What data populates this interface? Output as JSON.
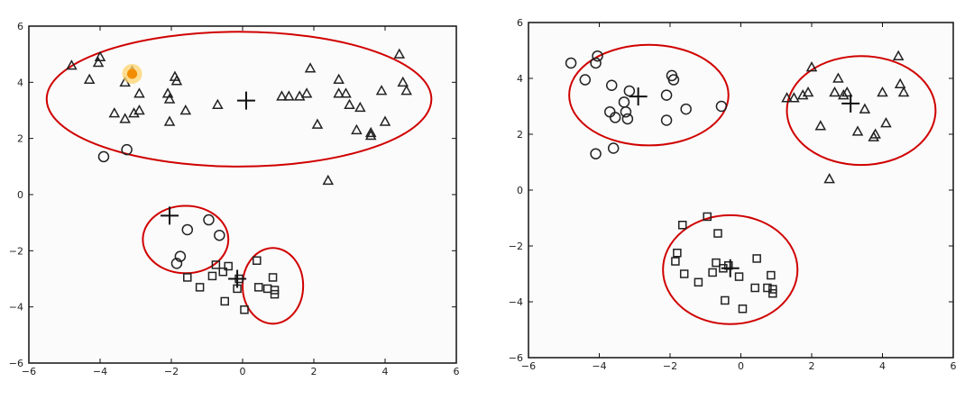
{
  "chart_data": [
    {
      "type": "scatter",
      "title": "",
      "xlabel": "",
      "ylabel": "",
      "xlim": [
        -6,
        6
      ],
      "ylim": [
        -6,
        6
      ],
      "xticks": [
        "−6",
        "−4",
        "−2",
        "0",
        "2",
        "4",
        "6"
      ],
      "yticks": [
        "6",
        "4",
        "2",
        "0",
        "−2",
        "−4",
        "−6"
      ],
      "grid": false,
      "series": [
        {
          "marker": "triangle",
          "points": [
            [
              -4.8,
              4.6
            ],
            [
              -4.3,
              4.1
            ],
            [
              -4.05,
              4.7
            ],
            [
              -4.0,
              4.9
            ],
            [
              -3.3,
              4.0
            ],
            [
              -3.1,
              4.4
            ],
            [
              -2.9,
              3.6
            ],
            [
              -3.6,
              2.9
            ],
            [
              -3.3,
              2.7
            ],
            [
              -3.05,
              2.9
            ],
            [
              -2.9,
              3.0
            ],
            [
              -2.1,
              3.6
            ],
            [
              -2.05,
              3.4
            ],
            [
              -1.9,
              4.2
            ],
            [
              -1.85,
              4.05
            ],
            [
              -2.05,
              2.6
            ],
            [
              -1.6,
              3.0
            ],
            [
              -0.7,
              3.2
            ],
            [
              1.1,
              3.5
            ],
            [
              1.3,
              3.5
            ],
            [
              1.6,
              3.5
            ],
            [
              1.8,
              3.6
            ],
            [
              1.9,
              4.5
            ],
            [
              2.1,
              2.5
            ],
            [
              2.7,
              4.1
            ],
            [
              2.7,
              3.6
            ],
            [
              2.9,
              3.6
            ],
            [
              3.0,
              3.2
            ],
            [
              3.2,
              2.3
            ],
            [
              3.3,
              3.1
            ],
            [
              3.6,
              2.1
            ],
            [
              3.6,
              2.2
            ],
            [
              4.0,
              2.6
            ],
            [
              4.4,
              5.0
            ],
            [
              4.5,
              4.0
            ],
            [
              4.6,
              3.7
            ],
            [
              3.9,
              3.7
            ],
            [
              2.4,
              0.5
            ]
          ]
        },
        {
          "marker": "circle",
          "points": [
            [
              -3.9,
              1.35
            ],
            [
              -3.25,
              1.6
            ],
            [
              -1.55,
              -1.25
            ],
            [
              -0.95,
              -0.9
            ],
            [
              -0.65,
              -1.45
            ],
            [
              -1.75,
              -2.2
            ],
            [
              -1.85,
              -2.45
            ]
          ]
        },
        {
          "marker": "square",
          "points": [
            [
              -1.55,
              -2.95
            ],
            [
              -1.2,
              -3.3
            ],
            [
              -0.85,
              -2.9
            ],
            [
              -0.75,
              -2.5
            ],
            [
              -0.55,
              -2.75
            ],
            [
              -0.5,
              -3.8
            ],
            [
              -0.4,
              -2.55
            ],
            [
              -0.1,
              -3.0
            ],
            [
              0.05,
              -4.1
            ],
            [
              0.4,
              -2.35
            ],
            [
              0.45,
              -3.3
            ],
            [
              0.7,
              -3.35
            ],
            [
              0.85,
              -2.95
            ],
            [
              0.9,
              -3.4
            ],
            [
              0.9,
              -3.55
            ],
            [
              -0.15,
              -3.35
            ]
          ]
        },
        {
          "marker": "centroid",
          "points": [
            [
              0.1,
              3.35
            ],
            [
              -2.05,
              -0.75
            ],
            [
              -0.15,
              -3.0
            ]
          ]
        }
      ],
      "annotations": [
        {
          "shape": "ellipse",
          "cx": -0.1,
          "cy": 3.4,
          "rx": 5.4,
          "ry": 2.4
        },
        {
          "shape": "ellipse",
          "cx": -1.6,
          "cy": -1.6,
          "rx": 1.2,
          "ry": 1.2
        },
        {
          "shape": "ellipse",
          "cx": 0.85,
          "cy": -3.25,
          "rx": 0.85,
          "ry": 1.35
        },
        {
          "shape": "highlight-dot",
          "x": -3.1,
          "y": 4.3,
          "color": "#f28c00",
          "glow": "#ffd36b"
        }
      ]
    },
    {
      "type": "scatter",
      "title": "",
      "xlabel": "",
      "ylabel": "",
      "xlim": [
        -6,
        6
      ],
      "ylim": [
        -6,
        6
      ],
      "xticks": [
        "−6",
        "−4",
        "−2",
        "0",
        "2",
        "4",
        "6"
      ],
      "yticks": [
        "6",
        "4",
        "2",
        "0",
        "−2",
        "−4",
        "−6"
      ],
      "grid": false,
      "series": [
        {
          "marker": "triangle",
          "points": [
            [
              1.3,
              3.3
            ],
            [
              1.5,
              3.3
            ],
            [
              1.75,
              3.4
            ],
            [
              1.9,
              3.5
            ],
            [
              2.0,
              4.4
            ],
            [
              2.25,
              2.3
            ],
            [
              2.65,
              3.5
            ],
            [
              2.75,
              4.0
            ],
            [
              2.9,
              3.4
            ],
            [
              3.0,
              3.5
            ],
            [
              3.3,
              2.1
            ],
            [
              3.5,
              2.9
            ],
            [
              3.75,
              1.9
            ],
            [
              3.8,
              2.0
            ],
            [
              4.0,
              3.5
            ],
            [
              4.1,
              2.4
            ],
            [
              4.45,
              4.8
            ],
            [
              4.5,
              3.8
            ],
            [
              4.6,
              3.5
            ],
            [
              2.5,
              0.4
            ]
          ]
        },
        {
          "marker": "circle",
          "points": [
            [
              -4.8,
              4.55
            ],
            [
              -4.4,
              3.95
            ],
            [
              -4.1,
              4.55
            ],
            [
              -4.05,
              4.8
            ],
            [
              -4.1,
              1.3
            ],
            [
              -3.7,
              2.8
            ],
            [
              -3.55,
              2.6
            ],
            [
              -3.25,
              2.8
            ],
            [
              -3.3,
              3.15
            ],
            [
              -3.15,
              3.55
            ],
            [
              -3.2,
              2.55
            ],
            [
              -3.6,
              1.5
            ],
            [
              -2.1,
              3.4
            ],
            [
              -2.1,
              2.5
            ],
            [
              -1.95,
              4.1
            ],
            [
              -1.9,
              3.95
            ],
            [
              -1.55,
              2.9
            ],
            [
              -0.55,
              3.0
            ],
            [
              -3.65,
              3.75
            ]
          ]
        },
        {
          "marker": "square",
          "points": [
            [
              -1.65,
              -1.25
            ],
            [
              -0.95,
              -0.95
            ],
            [
              -0.65,
              -1.55
            ],
            [
              -1.8,
              -2.25
            ],
            [
              -1.85,
              -2.55
            ],
            [
              -1.6,
              -3.0
            ],
            [
              -1.2,
              -3.3
            ],
            [
              -0.8,
              -2.95
            ],
            [
              -0.7,
              -2.6
            ],
            [
              -0.5,
              -2.8
            ],
            [
              -0.45,
              -3.95
            ],
            [
              -0.35,
              -2.7
            ],
            [
              -0.05,
              -3.1
            ],
            [
              0.05,
              -4.25
            ],
            [
              0.45,
              -2.45
            ],
            [
              0.4,
              -3.5
            ],
            [
              0.75,
              -3.5
            ],
            [
              0.85,
              -3.05
            ],
            [
              0.9,
              -3.55
            ],
            [
              0.9,
              -3.7
            ]
          ]
        },
        {
          "marker": "centroid",
          "points": [
            [
              -2.9,
              3.35
            ],
            [
              3.1,
              3.1
            ],
            [
              -0.3,
              -2.8
            ]
          ]
        }
      ],
      "annotations": [
        {
          "shape": "ellipse",
          "cx": -2.6,
          "cy": 3.4,
          "rx": 2.25,
          "ry": 1.8
        },
        {
          "shape": "ellipse",
          "cx": 3.4,
          "cy": 2.85,
          "rx": 2.1,
          "ry": 1.95
        },
        {
          "shape": "ellipse",
          "cx": -0.3,
          "cy": -2.85,
          "rx": 1.9,
          "ry": 1.95
        }
      ]
    }
  ]
}
